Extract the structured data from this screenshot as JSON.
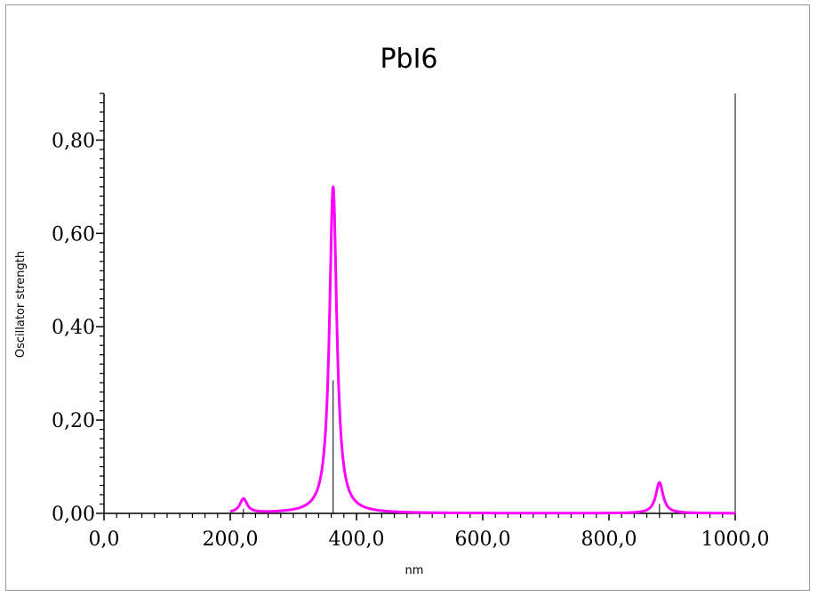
{
  "chart_data": {
    "type": "line",
    "title": "PbI6",
    "xlabel": "nm",
    "ylabel": "Oscillator strength",
    "xlim": [
      0,
      1000
    ],
    "ylim": [
      0,
      0.9
    ],
    "x_ticks": [
      0,
      200,
      400,
      600,
      800,
      1000
    ],
    "x_tick_labels": [
      "0,0",
      "200,0",
      "400,0",
      "600,0",
      "800,0",
      "1000,0"
    ],
    "y_ticks": [
      0,
      0.2,
      0.4,
      0.6,
      0.8
    ],
    "y_tick_labels": [
      "0,00",
      "0,20",
      "0,40",
      "0,60",
      "0,80"
    ],
    "grid": false,
    "colors": {
      "spectrum": "#ff00ff",
      "sticks": "#000000",
      "axes": "#000000"
    },
    "series": [
      {
        "kind": "broadened-spectrum",
        "peaks": [
          {
            "x": 221,
            "y": 0.03
          },
          {
            "x": 363,
            "y": 0.7
          },
          {
            "x": 880,
            "y": 0.066
          }
        ],
        "x_range": [
          200,
          1000
        ]
      },
      {
        "kind": "sticks",
        "x": [
          221,
          363,
          880
        ],
        "y": [
          0.01,
          0.285,
          0.02
        ]
      }
    ]
  }
}
